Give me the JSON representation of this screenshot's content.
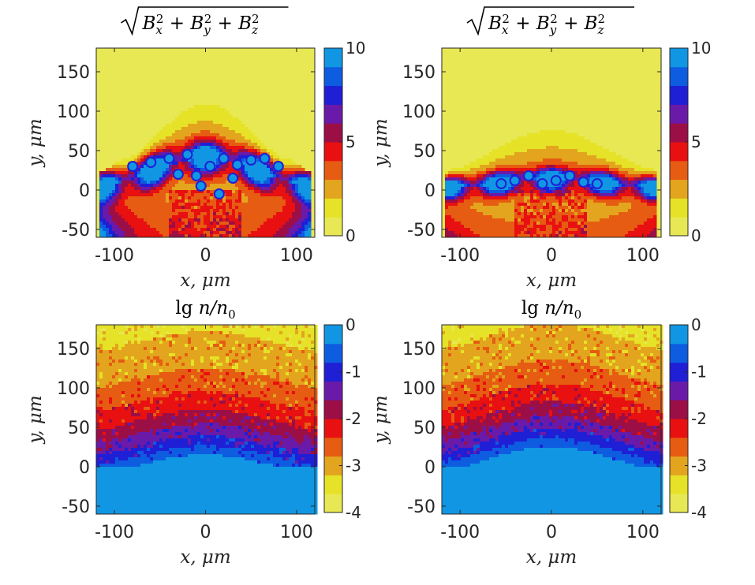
{
  "chart_data": [
    {
      "type": "heatmap",
      "panel": "top-left",
      "title": "√(B_x² + B_y² + B_z²)",
      "title_parts": {
        "var": "B",
        "subs": [
          "x",
          "y",
          "z"
        ],
        "power": "2"
      },
      "xlabel": "x, μm",
      "ylabel": "y, μm",
      "xlim": [
        -120,
        120
      ],
      "ylim": [
        -60,
        180
      ],
      "xticks": [
        -100,
        0,
        100
      ],
      "yticks": [
        -50,
        0,
        50,
        100,
        150
      ],
      "xtick_labels": [
        "-100",
        "0",
        "100"
      ],
      "ytick_labels": [
        "-50",
        "0",
        "50",
        "100",
        "150"
      ],
      "colorbar": {
        "min": 0,
        "max": 10,
        "ticks": [
          0,
          5,
          10
        ],
        "tick_labels": [
          "0",
          "5",
          "10"
        ]
      },
      "field": "magnetic",
      "description_value": "bright blue spots along an arc y≈0..50 μm, envelope peaking near y≈120 μm at x≈0"
    },
    {
      "type": "heatmap",
      "panel": "top-right",
      "title": "√(B_x² + B_y² + B_z²)",
      "title_parts": {
        "var": "B",
        "subs": [
          "x",
          "y",
          "z"
        ],
        "power": "2"
      },
      "xlabel": "x, μm",
      "ylabel": "y, μm",
      "xlim": [
        -120,
        120
      ],
      "ylim": [
        -60,
        180
      ],
      "xticks": [
        -100,
        0,
        100
      ],
      "yticks": [
        -50,
        0,
        50,
        100,
        150
      ],
      "xtick_labels": [
        "-100",
        "0",
        "100"
      ],
      "ytick_labels": [
        "-50",
        "0",
        "50",
        "100",
        "150"
      ],
      "colorbar": {
        "min": 0,
        "max": 10,
        "ticks": [
          0,
          5,
          10
        ],
        "tick_labels": [
          "0",
          "5",
          "10"
        ]
      },
      "field": "magnetic",
      "description_value": "weaker field, envelope up to y≈80 μm"
    },
    {
      "type": "heatmap",
      "panel": "bottom-left",
      "title": "lg n/n₀",
      "title_parts": {
        "fn": "lg",
        "num": "n",
        "den": "n",
        "den_sub": "0"
      },
      "xlabel": "x, μm",
      "ylabel": "y, μm",
      "xlim": [
        -120,
        120
      ],
      "ylim": [
        -60,
        180
      ],
      "xticks": [
        -100,
        0,
        100
      ],
      "yticks": [
        -50,
        0,
        50,
        100,
        150
      ],
      "xtick_labels": [
        "-100",
        "0",
        "100"
      ],
      "ytick_labels": [
        "-50",
        "0",
        "50",
        "100",
        "150"
      ],
      "colorbar": {
        "min": -4,
        "max": 0,
        "ticks": [
          -4,
          -3,
          -2,
          -1,
          0
        ],
        "tick_labels": [
          "-4",
          "-3",
          "-2",
          "-1",
          "0"
        ]
      },
      "field": "density",
      "surface_y": 0,
      "peak_height": 35
    },
    {
      "type": "heatmap",
      "panel": "bottom-right",
      "title": "lg n/n₀",
      "title_parts": {
        "fn": "lg",
        "num": "n",
        "den": "n",
        "den_sub": "0"
      },
      "xlabel": "x, μm",
      "ylabel": "y, μm",
      "xlim": [
        -120,
        120
      ],
      "ylim": [
        -60,
        180
      ],
      "xticks": [
        -100,
        0,
        100
      ],
      "yticks": [
        -50,
        0,
        50,
        100,
        150
      ],
      "xtick_labels": [
        "-100",
        "0",
        "100"
      ],
      "ytick_labels": [
        "-50",
        "0",
        "50",
        "100",
        "150"
      ],
      "colorbar": {
        "min": -4,
        "max": 0,
        "ticks": [
          -4,
          -3,
          -2,
          -1,
          0
        ],
        "tick_labels": [
          "-4",
          "-3",
          "-2",
          "-1",
          "0"
        ]
      },
      "field": "density",
      "surface_y": 0,
      "peak_height": 45
    }
  ],
  "colormap": [
    "#e8e854",
    "#e6e227",
    "#e3a51d",
    "#e65c12",
    "#e81010",
    "#9c0f46",
    "#6a1aa8",
    "#1f1fd6",
    "#0e5ce0",
    "#1196e3"
  ]
}
